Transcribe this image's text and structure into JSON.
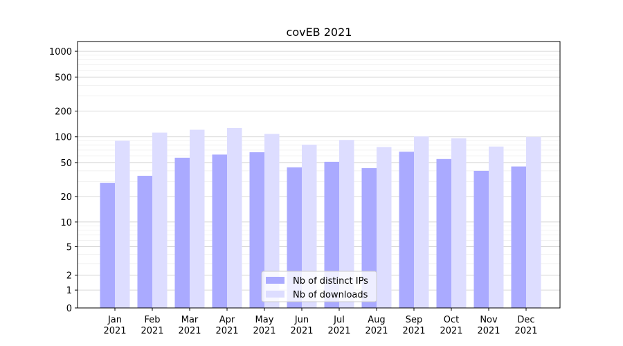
{
  "chart_data": {
    "type": "bar",
    "title": "covEB 2021",
    "xlabel": "",
    "ylabel": "",
    "yscale": "symlog",
    "ylim": [
      0,
      1300
    ],
    "yticks": [
      {
        "value": 0,
        "label": "0"
      },
      {
        "value": 1,
        "label": "1"
      },
      {
        "value": 2,
        "label": "2"
      },
      {
        "value": 5,
        "label": "5"
      },
      {
        "value": 10,
        "label": "10"
      },
      {
        "value": 20,
        "label": "20"
      },
      {
        "value": 50,
        "label": "50"
      },
      {
        "value": 100,
        "label": "100"
      },
      {
        "value": 200,
        "label": "200"
      },
      {
        "value": 500,
        "label": "500"
      },
      {
        "value": 1000,
        "label": "1000"
      }
    ],
    "categories": [
      {
        "month": "Jan",
        "year": "2021"
      },
      {
        "month": "Feb",
        "year": "2021"
      },
      {
        "month": "Mar",
        "year": "2021"
      },
      {
        "month": "Apr",
        "year": "2021"
      },
      {
        "month": "May",
        "year": "2021"
      },
      {
        "month": "Jun",
        "year": "2021"
      },
      {
        "month": "Jul",
        "year": "2021"
      },
      {
        "month": "Aug",
        "year": "2021"
      },
      {
        "month": "Sep",
        "year": "2021"
      },
      {
        "month": "Oct",
        "year": "2021"
      },
      {
        "month": "Nov",
        "year": "2021"
      },
      {
        "month": "Dec",
        "year": "2021"
      }
    ],
    "series": [
      {
        "name": "Nb of distinct IPs",
        "color": "#aaaaff",
        "values": [
          29,
          35,
          57,
          62,
          66,
          44,
          51,
          43,
          67,
          55,
          40,
          45
        ]
      },
      {
        "name": "Nb of downloads",
        "color": "#ddddff",
        "values": [
          90,
          112,
          121,
          127,
          108,
          81,
          92,
          76,
          101,
          96,
          77,
          100
        ]
      }
    ],
    "legend_position": "bottom-center",
    "grid": true
  }
}
